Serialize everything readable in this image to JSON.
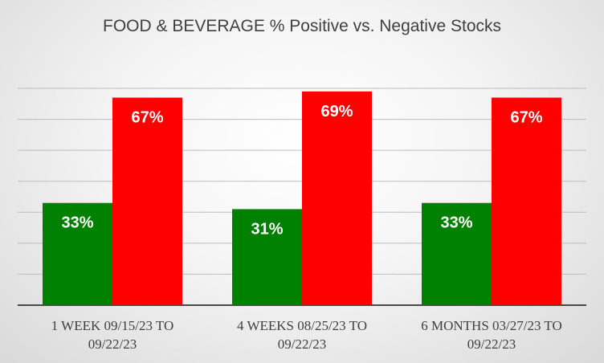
{
  "chart_data": {
    "type": "bar",
    "title": "FOOD & BEVERAGE % Positive vs. Negative Stocks",
    "categories": [
      [
        "1 WEEK 09/15/23 TO",
        "09/22/23"
      ],
      [
        "4 WEEKS 08/25/23 TO",
        "09/22/23"
      ],
      [
        "6 MONTHS 03/27/23 TO",
        "09/22/23"
      ]
    ],
    "series": [
      {
        "name": "Positive",
        "color": "#008000",
        "values": [
          33,
          31,
          33
        ],
        "labels": [
          "33%",
          "31%",
          "33%"
        ]
      },
      {
        "name": "Negative",
        "color": "#ff0000",
        "values": [
          67,
          69,
          67
        ],
        "labels": [
          "67%",
          "69%",
          "67%"
        ]
      }
    ],
    "ylim": [
      0,
      70
    ],
    "grid": true,
    "xlabel": "",
    "ylabel": ""
  }
}
